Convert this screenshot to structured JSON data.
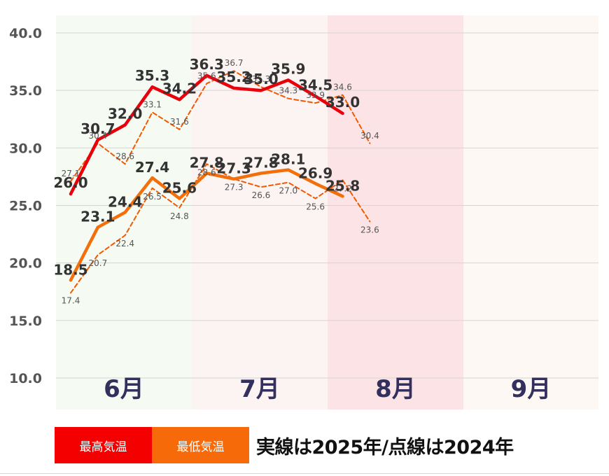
{
  "chart_data": {
    "type": "line",
    "months": [
      "6月",
      "7月",
      "8月",
      "9月"
    ],
    "month_colors": [
      "#f5fbf3",
      "#fcf3f3",
      "#fce4e6",
      "#fdf8f4"
    ],
    "ylim": [
      10,
      40
    ],
    "yticks": [
      "10.0",
      "15.0",
      "20.0",
      "25.0",
      "30.0",
      "35.0",
      "40.0"
    ],
    "grid": true,
    "series": [
      {
        "name": "最高気温",
        "year": "2025",
        "style": "solid",
        "color": "#e8000b",
        "values": [
          26.0,
          30.7,
          32.0,
          35.3,
          34.2,
          36.3,
          35.2,
          35.0,
          35.9,
          34.5,
          33.0
        ],
        "labels": [
          "26.0",
          "30.7",
          "32.0",
          "35.3",
          "34.2",
          "36.3",
          "35.2",
          "35.0",
          "35.9",
          "34.5",
          "33.0"
        ]
      },
      {
        "name": "最低気温",
        "year": "2025",
        "style": "solid",
        "color": "#f26f0b",
        "values": [
          18.5,
          23.1,
          24.4,
          27.4,
          25.6,
          27.8,
          27.3,
          27.8,
          28.1,
          26.9,
          25.8
        ],
        "labels": [
          "18.5",
          "23.1",
          "24.4",
          "27.4",
          "25.6",
          "27.8",
          "27.3",
          "27.8",
          "28.1",
          "26.9",
          "25.8"
        ]
      },
      {
        "name": "最高気温",
        "year": "2024",
        "style": "dashed",
        "color": "#f15a00",
        "values": [
          27.1,
          30.4,
          28.6,
          33.1,
          31.6,
          35.6,
          36.7,
          35.3,
          34.3,
          33.9,
          34.6,
          30.4
        ],
        "labels": [
          "27.1",
          "30.4",
          "28.6",
          "33.1",
          "31.6",
          "35.6",
          "36.7",
          "35.3",
          "34.3",
          "33.9",
          "34.6",
          "30.4"
        ]
      },
      {
        "name": "最低気温",
        "year": "2024",
        "style": "dashed",
        "color": "#f15a00",
        "values": [
          17.4,
          20.7,
          22.4,
          26.5,
          24.8,
          28.6,
          27.3,
          26.6,
          27.0,
          25.6,
          27.2,
          23.6
        ],
        "labels": [
          "17.4",
          "20.7",
          "22.4",
          "26.5",
          "24.8",
          "28.6",
          "27.3",
          "26.6",
          "27.0",
          "25.6",
          "27.2",
          "23.6"
        ]
      }
    ]
  },
  "legend": {
    "items": [
      {
        "label": "最高気温",
        "color": "#f40000"
      },
      {
        "label": "最低気温",
        "color": "#f76a0a"
      }
    ],
    "note": "実線は2025年/点線は2024年"
  }
}
